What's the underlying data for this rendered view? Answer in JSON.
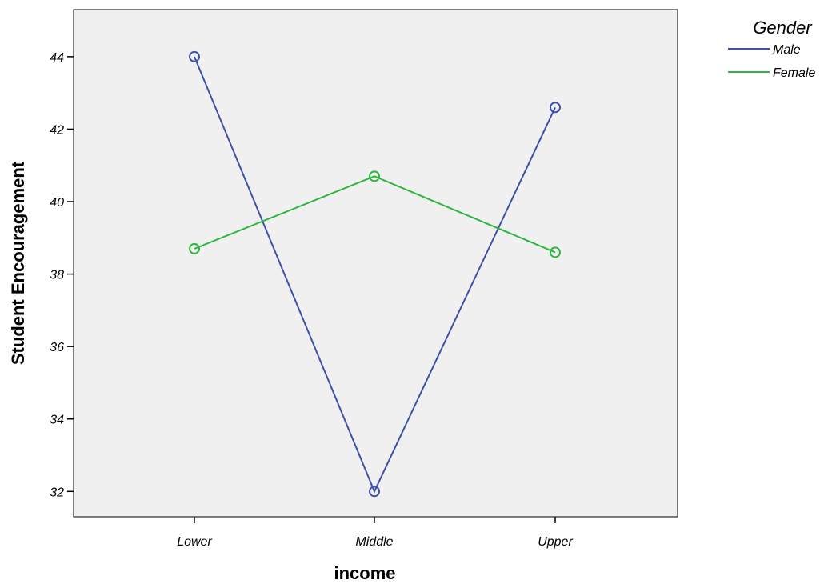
{
  "chart_data": {
    "type": "line",
    "xlabel": "income",
    "ylabel": "Student Encouragement",
    "categories": [
      "Lower",
      "Middle",
      "Upper"
    ],
    "ylim": [
      31.3,
      45.3
    ],
    "yticks": [
      32,
      34,
      36,
      38,
      40,
      42,
      44
    ],
    "grid": false,
    "plot_background": "#f0f0f0",
    "legend_title": "Gender",
    "legend_position": "top-right",
    "markers": "open-circle",
    "series": [
      {
        "name": "Male",
        "color": "#3f51a9",
        "values": [
          44.0,
          32.0,
          42.6
        ]
      },
      {
        "name": "Female",
        "color": "#2db83d",
        "values": [
          38.7,
          40.7,
          38.6
        ]
      }
    ]
  }
}
